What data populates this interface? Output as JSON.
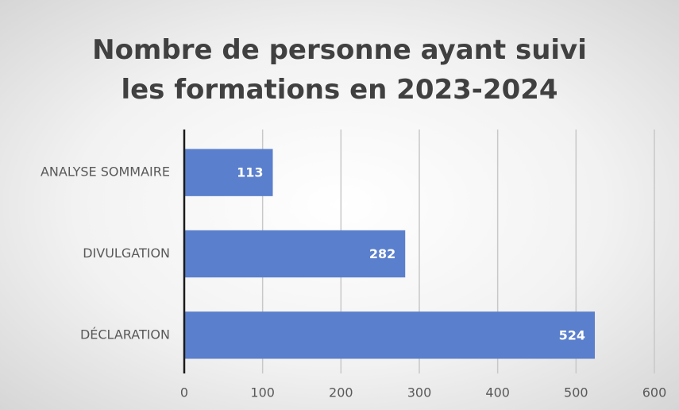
{
  "chart_data": {
    "type": "bar",
    "orientation": "horizontal",
    "title": "Nombre de personne ayant suivi les formations en 2023-2024",
    "categories": [
      "ANALYSE SOMMAIRE",
      "DIVULGATION",
      "DÉCLARATION"
    ],
    "values": [
      113,
      282,
      524
    ],
    "color": "#5a7fcc",
    "xlim": [
      0,
      600
    ],
    "xticks": [
      0,
      100,
      200,
      300,
      400,
      500,
      600
    ],
    "grid": true
  }
}
